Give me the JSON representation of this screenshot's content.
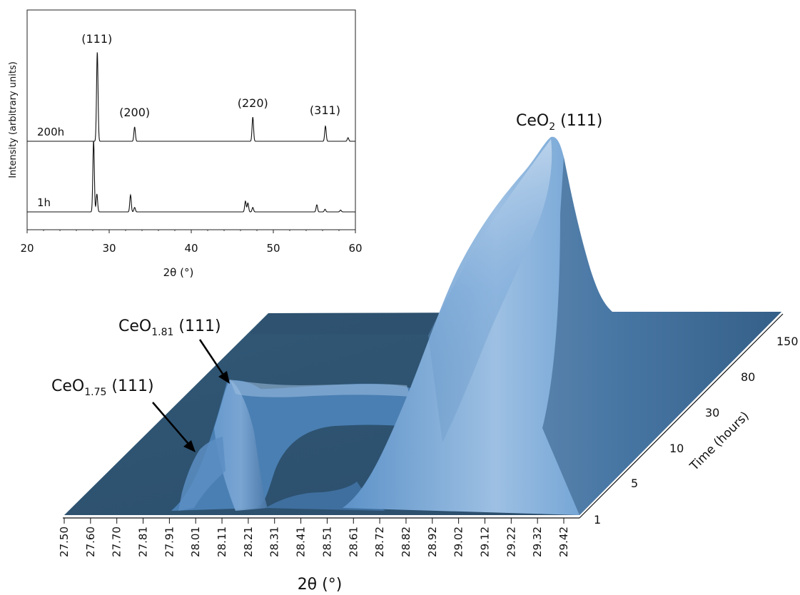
{
  "chart_data": [
    {
      "type": "line",
      "panel": "inset",
      "xlabel": "2θ (°)",
      "ylabel": "Intensity (arbitrary units)",
      "xlim": [
        20,
        60
      ],
      "x_ticks": [
        "20",
        "30",
        "40",
        "50",
        "60"
      ],
      "grid": false,
      "series": [
        {
          "name": "200h",
          "peaks": [
            {
              "x": 28.55,
              "height": 1.0
            },
            {
              "x": 33.1,
              "height": 0.16
            },
            {
              "x": 47.5,
              "height": 0.27
            },
            {
              "x": 56.35,
              "height": 0.17
            },
            {
              "x": 59.1,
              "height": 0.04
            }
          ]
        },
        {
          "name": "1h",
          "peaks": [
            {
              "x": 28.1,
              "height": 0.8
            },
            {
              "x": 28.5,
              "height": 0.2
            },
            {
              "x": 32.6,
              "height": 0.19
            },
            {
              "x": 33.1,
              "height": 0.05
            },
            {
              "x": 46.6,
              "height": 0.12
            },
            {
              "x": 46.9,
              "height": 0.1
            },
            {
              "x": 47.5,
              "height": 0.05
            },
            {
              "x": 55.3,
              "height": 0.08
            },
            {
              "x": 56.3,
              "height": 0.03
            },
            {
              "x": 58.2,
              "height": 0.02
            }
          ]
        }
      ],
      "annotations": [
        {
          "text": "(111)",
          "x": 28.5
        },
        {
          "text": "(200)",
          "x": 33.1
        },
        {
          "text": "(220)",
          "x": 47.5
        },
        {
          "text": "(311)",
          "x": 56.3
        }
      ]
    },
    {
      "type": "surface",
      "panel": "main",
      "xlabel": "2θ (°)",
      "ylabel": "Time (hours)",
      "x_ticks": [
        "27.50",
        "27.60",
        "27.70",
        "27.81",
        "27.91",
        "28.01",
        "28.11",
        "28.21",
        "28.31",
        "28.41",
        "28.51",
        "28.61",
        "28.72",
        "28.82",
        "28.92",
        "29.02",
        "29.12",
        "29.22",
        "29.32",
        "29.42"
      ],
      "y_ticks": [
        "1",
        "5",
        "10",
        "30",
        "80",
        "150"
      ],
      "peaks": [
        {
          "label_main": "CeO",
          "label_sub": "1.75",
          "label_tail": " (111)",
          "x": 28.0
        },
        {
          "label_main": "CeO",
          "label_sub": "1.81",
          "label_tail": " (111)",
          "x": 28.18
        },
        {
          "label_main": "CeO",
          "label_sub": "2",
          "label_tail": " (111)",
          "x": 28.62
        }
      ]
    }
  ],
  "colors": {
    "surface_base": "#2f5575",
    "surface_light": "#8fb4d9",
    "surface_mid": "#5b8fc6",
    "surface_dark": "#2b4e6e",
    "ink": "#111111"
  }
}
